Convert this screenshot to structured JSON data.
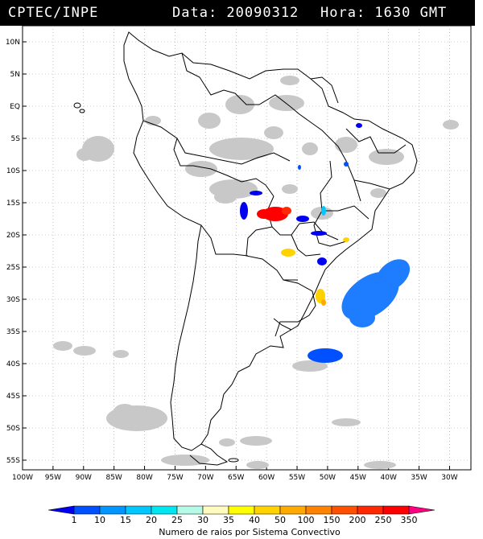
{
  "header": {
    "source": "CPTEC/INPE",
    "data_label": "Data: 20090312",
    "hora_label": "Hora: 1630 GMT"
  },
  "map": {
    "lat_labels": [
      "10N",
      "5N",
      "EQ",
      "5S",
      "10S",
      "15S",
      "20S",
      "25S",
      "30S",
      "35S",
      "40S",
      "45S",
      "50S",
      "55S"
    ],
    "lon_labels": [
      "100W",
      "95W",
      "90W",
      "85W",
      "80W",
      "75W",
      "70W",
      "65W",
      "60W",
      "55W",
      "50W",
      "45W",
      "40W",
      "35W",
      "30W"
    ],
    "gridlines": "dotted",
    "cloud_color": "#c8c8c8",
    "coastline_color": "#000000"
  },
  "colorbar": {
    "labels": [
      "1",
      "10",
      "15",
      "20",
      "25",
      "30",
      "35",
      "40",
      "50",
      "100",
      "150",
      "200",
      "250",
      "350"
    ],
    "colors": [
      "#0000f0",
      "#0050ff",
      "#0096ff",
      "#00c8ff",
      "#00e6f0",
      "#b4fae6",
      "#fffabe",
      "#ffff00",
      "#ffd200",
      "#ffaa00",
      "#ff8200",
      "#ff5000",
      "#ff2800",
      "#ff0000",
      "#ff0080"
    ],
    "title": "Numero de raios por Sistema Convectivo"
  }
}
